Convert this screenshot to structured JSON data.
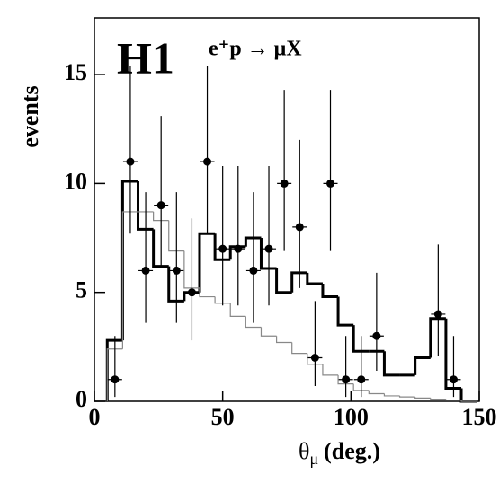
{
  "chart_data": {
    "type": "histogram",
    "title": "H1",
    "annotation": "e⁺p → μX",
    "ylabel": "events",
    "xlabel": {
      "symbol": "θ",
      "subscript": "μ",
      "text": "(deg.)"
    },
    "xlim": [
      0,
      150
    ],
    "ylim": [
      0,
      17.6
    ],
    "xticks": [
      0,
      50,
      100,
      150
    ],
    "yticks": [
      0,
      5,
      10,
      15
    ],
    "bins": [
      5,
      11,
      17,
      23,
      29,
      35,
      41,
      47,
      53,
      59,
      65,
      71,
      77,
      83,
      89,
      95,
      101,
      107,
      113,
      119,
      125,
      131,
      137,
      143,
      149
    ],
    "histograms": [
      {
        "color": "#000000",
        "width": 3,
        "values": [
          2.8,
          10.1,
          7.9,
          6.2,
          4.6,
          5.0,
          7.7,
          6.5,
          7.1,
          7.5,
          6.1,
          5.0,
          5.9,
          5.4,
          4.8,
          3.5,
          2.3,
          2.3,
          1.2,
          1.2,
          2.0,
          3.8,
          0.6,
          0
        ]
      },
      {
        "color": "#888888",
        "width": 1.2,
        "values": [
          2.4,
          8.7,
          8.7,
          8.3,
          6.9,
          5.2,
          4.8,
          4.5,
          3.9,
          3.4,
          3.0,
          2.7,
          2.2,
          1.7,
          1.2,
          0.8,
          0.5,
          0.35,
          0.25,
          0.2,
          0.15,
          0.1,
          0.05,
          0
        ]
      }
    ],
    "points": {
      "color": "#000000",
      "x": [
        8,
        14,
        20,
        26,
        32,
        38,
        44,
        50,
        56,
        62,
        68,
        74,
        80,
        86,
        92,
        98,
        104,
        110,
        134,
        140
      ],
      "values": [
        1,
        11,
        6,
        9,
        6,
        5,
        11,
        7,
        7,
        6,
        7,
        10,
        8,
        2,
        10,
        1,
        1,
        3,
        4,
        1
      ],
      "errors_high": [
        2.0,
        4.4,
        3.6,
        4.1,
        3.6,
        3.4,
        4.4,
        3.8,
        3.8,
        3.6,
        3.8,
        4.3,
        4.0,
        2.6,
        4.3,
        2.0,
        2.0,
        2.9,
        3.2,
        2.0
      ],
      "errors_low": [
        0.8,
        3.3,
        2.4,
        2.9,
        2.4,
        2.2,
        3.3,
        2.6,
        2.6,
        2.4,
        2.6,
        3.1,
        2.8,
        1.3,
        3.1,
        0.8,
        0.8,
        1.6,
        1.9,
        0.8
      ]
    }
  }
}
